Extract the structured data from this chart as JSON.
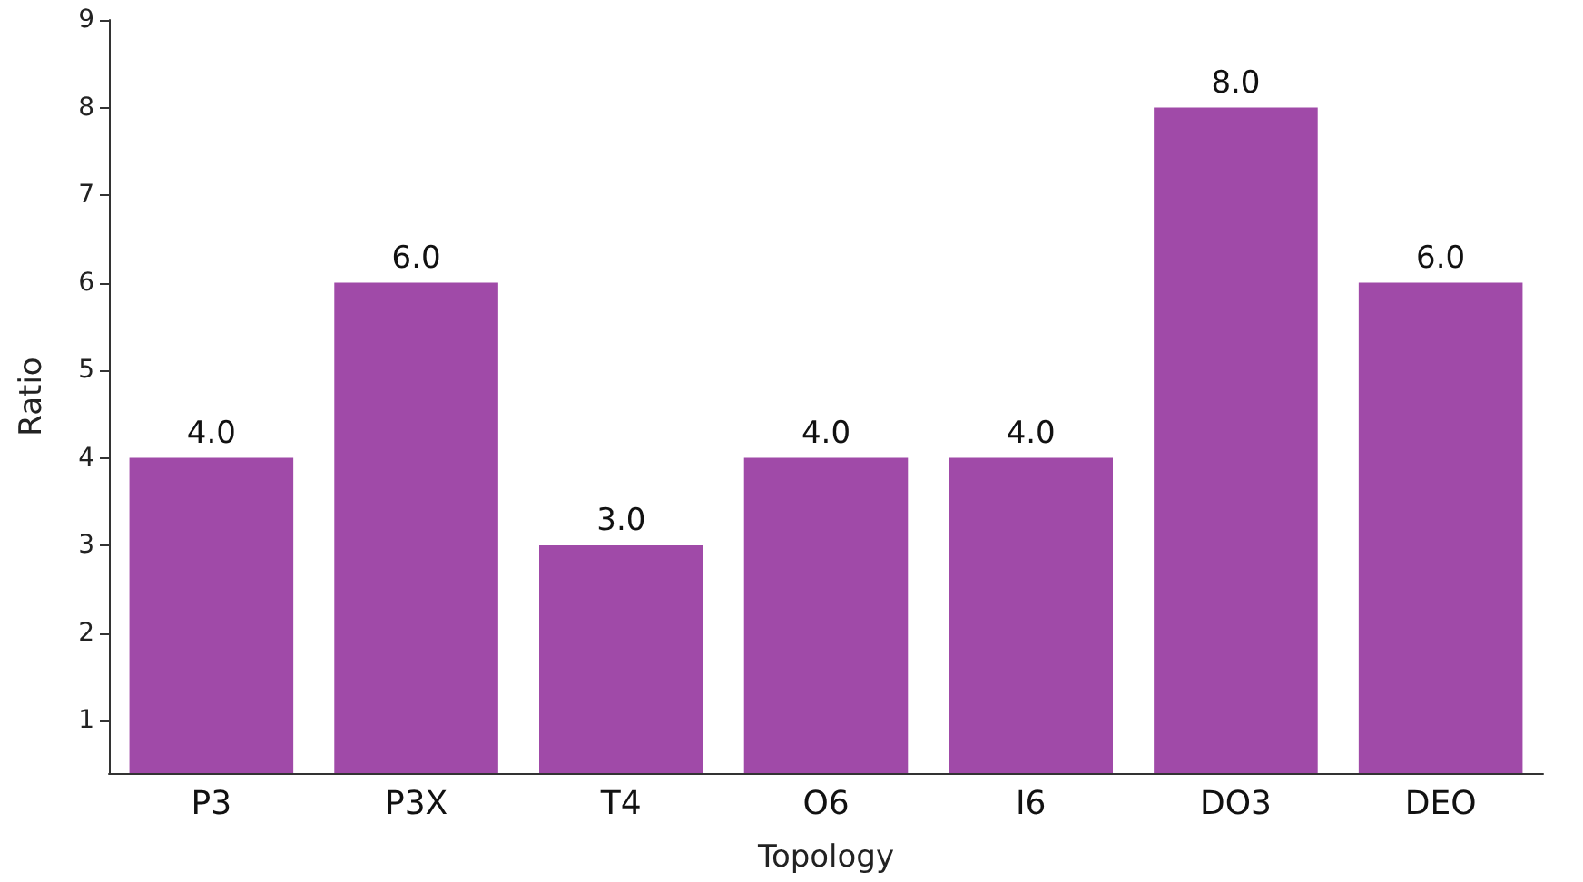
{
  "chart_data": {
    "type": "bar",
    "xlabel": "Topology",
    "ylabel": "Ratio",
    "categories": [
      "P3",
      "P3X",
      "T4",
      "O6",
      "I6",
      "DO3",
      "DEO"
    ],
    "values": [
      4,
      6,
      3,
      4,
      4,
      8,
      6
    ],
    "value_labels": [
      "4.0",
      "6.0",
      "3.0",
      "4.0",
      "4.0",
      "8.0",
      "6.0"
    ],
    "color": "#a04aa8",
    "ylim": [
      0.4,
      9
    ],
    "yticks": [
      1,
      2,
      3,
      4,
      5,
      6,
      7,
      8,
      9
    ],
    "grid": false
  }
}
